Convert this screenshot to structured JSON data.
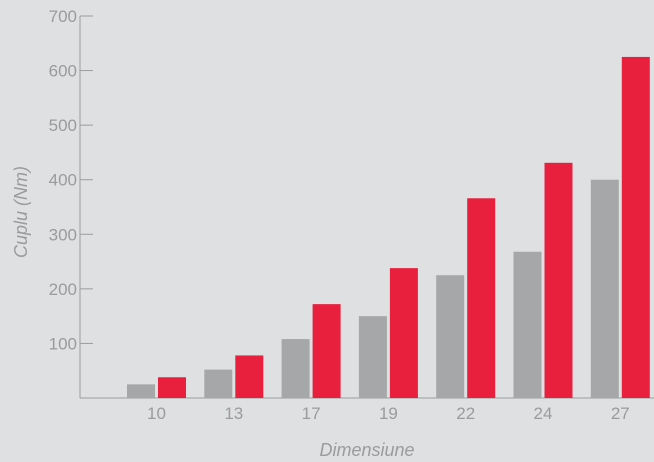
{
  "chart_data": {
    "type": "bar",
    "xlabel": "Dimensiune",
    "ylabel": "Cuplu (Nm)",
    "ylim": [
      0,
      700
    ],
    "yticks": [
      100,
      200,
      300,
      400,
      500,
      600,
      700
    ],
    "grid": false,
    "legend": "none",
    "categories": [
      "10",
      "13",
      "17",
      "19",
      "22",
      "24",
      "27"
    ],
    "series": [
      {
        "color": "#a6a7a9",
        "values": [
          25,
          52,
          108,
          150,
          225,
          268,
          400
        ]
      },
      {
        "color": "#e8203d",
        "values": [
          38,
          78,
          172,
          238,
          366,
          431,
          625
        ]
      }
    ]
  }
}
